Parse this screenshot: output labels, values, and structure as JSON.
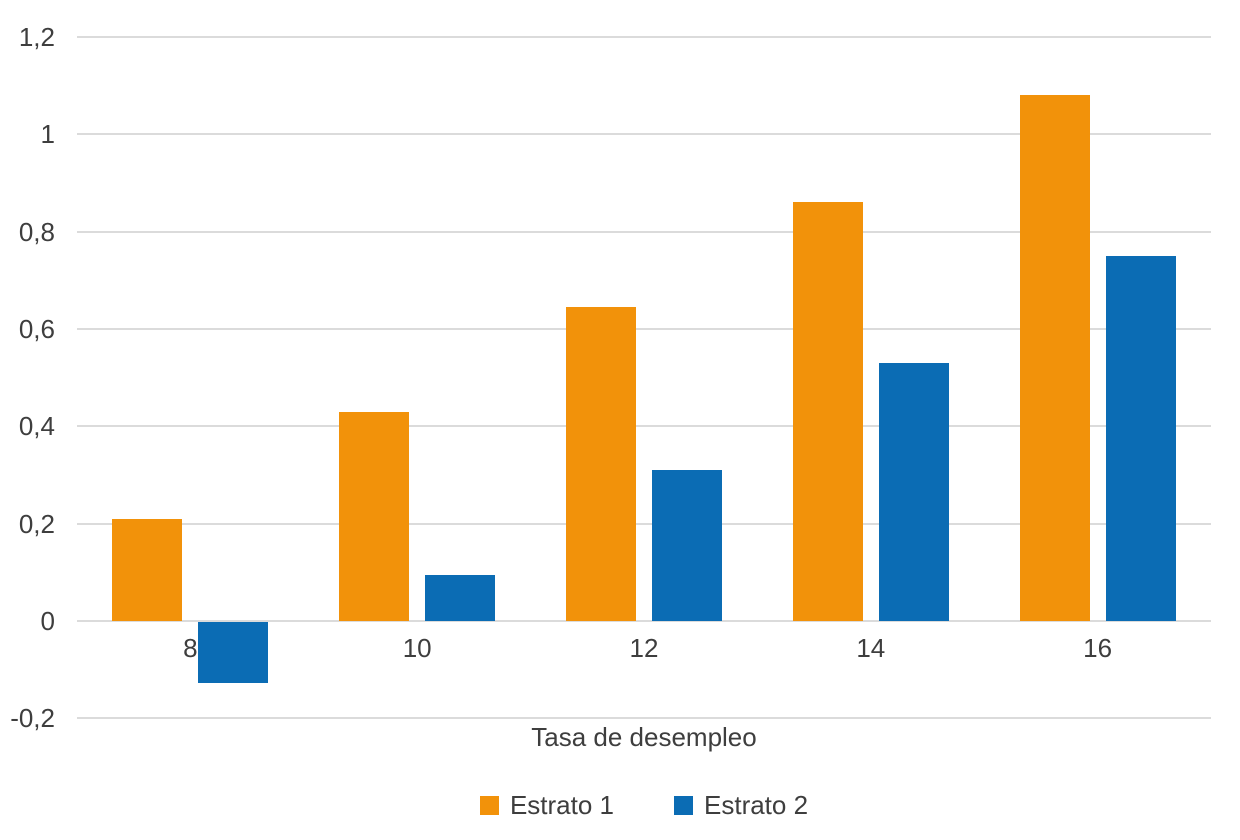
{
  "chart_data": {
    "type": "bar",
    "title": "",
    "xlabel": "Tasa de desempleo",
    "ylabel": "",
    "categories": [
      "8",
      "10",
      "12",
      "14",
      "16"
    ],
    "series": [
      {
        "name": "Estrato 1",
        "color": "#F2920A",
        "values": [
          0.21,
          0.43,
          0.645,
          0.86,
          1.08
        ]
      },
      {
        "name": "Estrato 2",
        "color": "#0B6CB4",
        "values": [
          -0.125,
          0.095,
          0.31,
          0.53,
          0.75
        ]
      }
    ],
    "ylim": [
      -0.2,
      1.2
    ],
    "yticks": [
      {
        "value": 1.2,
        "label": "1,2"
      },
      {
        "value": 1.0,
        "label": "1"
      },
      {
        "value": 0.8,
        "label": "0,8"
      },
      {
        "value": 0.6,
        "label": "0,6"
      },
      {
        "value": 0.4,
        "label": "0,4"
      },
      {
        "value": 0.2,
        "label": "0,2"
      },
      {
        "value": 0.0,
        "label": "0"
      },
      {
        "value": -0.2,
        "label": "-0,2"
      }
    ],
    "grid": true,
    "legend_position": "bottom",
    "decimal_separator": ","
  },
  "style": {
    "background": "#FFFFFF",
    "gridline_color": "#DBDBDB",
    "text_color": "#3E3E3E"
  }
}
